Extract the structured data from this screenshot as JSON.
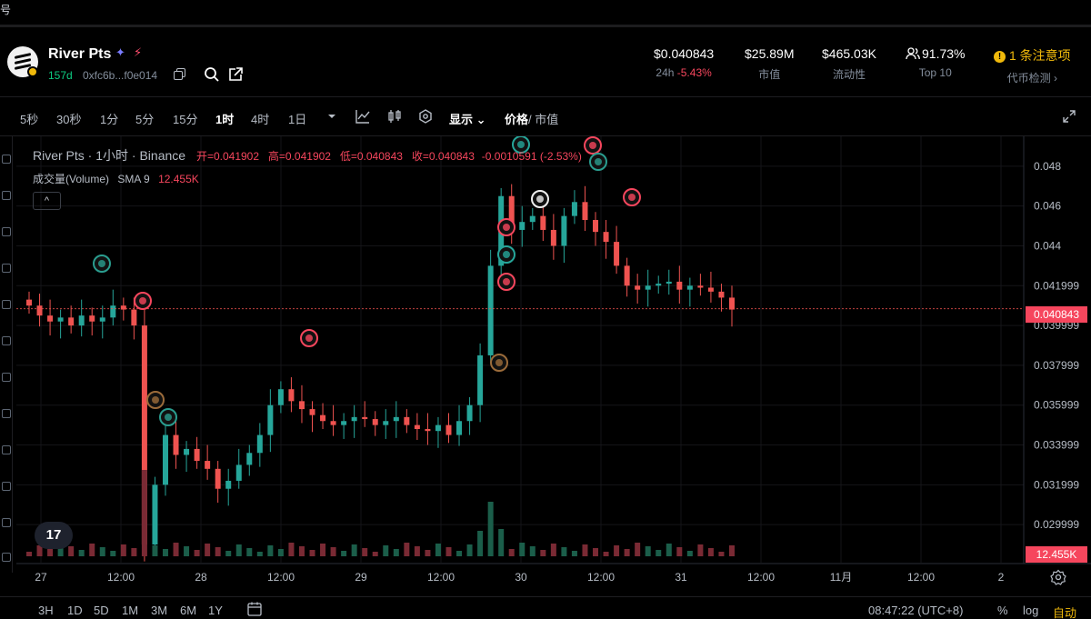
{
  "topstrip": {
    "text": "号"
  },
  "header": {
    "token_name": "River Pts",
    "age": "157d",
    "address": "0xfc6b...f0e014",
    "price": "$0.040843",
    "change_label": "24h",
    "change_value": "-5.43%",
    "market_cap": "$25.89M",
    "market_cap_label": "市值",
    "liquidity": "$465.03K",
    "liquidity_label": "流动性",
    "top10": "91.73%",
    "top10_label": "Top 10",
    "alert": "1 条注意项",
    "alert_label": "代币检测",
    "alert_label_arrow": "›"
  },
  "toolbar": {
    "timeframes": [
      "5秒",
      "30秒",
      "1分",
      "5分",
      "15分",
      "1时",
      "4时",
      "1日"
    ],
    "active_timeframe": "1时",
    "display_label": "显示",
    "price_label": "价格",
    "mcap_label": "/ 市值"
  },
  "legend": {
    "title": "River Pts · 1小时 · Binance",
    "open": "开=0.041902",
    "high": "高=0.041902",
    "low": "低=0.040843",
    "close": "收=0.040843",
    "change": "-0.0010591 (-2.53%)",
    "volume_label": "成交量(Volume)",
    "sma_label": "SMA 9",
    "volume_value": "12.455K",
    "collapse": "^"
  },
  "colors": {
    "up": "#26a69a",
    "down": "#ef5350",
    "background": "#000000",
    "grid": "#151518",
    "accent": "#f0b90b"
  },
  "chart_data": {
    "type": "candlestick",
    "title": "River Pts · 1小时 · Binance",
    "y_ticks": [
      "0.048",
      "0.046",
      "0.044",
      "0.041999",
      "0.039999",
      "0.037999",
      "0.035999",
      "0.033999",
      "0.031999",
      "0.029999"
    ],
    "x_ticks": [
      "27",
      "12:00",
      "28",
      "12:00",
      "29",
      "12:00",
      "30",
      "12:00",
      "31",
      "12:00",
      "11月",
      "12:00",
      "2"
    ],
    "ylim": [
      0.0285,
      0.0495
    ],
    "last_price": "0.040843",
    "last_volume": "12.455K",
    "close_series_approx": [
      0.041,
      0.0405,
      0.0402,
      0.0404,
      0.04,
      0.0405,
      0.0402,
      0.0404,
      0.041,
      0.0408,
      0.04,
      0.029,
      0.032,
      0.0345,
      0.0335,
      0.0338,
      0.0332,
      0.0328,
      0.0318,
      0.0322,
      0.033,
      0.0336,
      0.0345,
      0.036,
      0.0368,
      0.0362,
      0.0358,
      0.0355,
      0.0352,
      0.035,
      0.0352,
      0.0354,
      0.0353,
      0.035,
      0.0352,
      0.0354,
      0.035,
      0.0348,
      0.0347,
      0.035,
      0.0345,
      0.0352,
      0.036,
      0.0385,
      0.043,
      0.0465,
      0.0448,
      0.0452,
      0.0455,
      0.0448,
      0.044,
      0.0455,
      0.0462,
      0.0453,
      0.0447,
      0.0442,
      0.043,
      0.042,
      0.0418,
      0.042,
      0.0421,
      0.0422,
      0.0418,
      0.042,
      0.0419,
      0.0417,
      0.0414,
      0.0408
    ]
  },
  "bottombar": {
    "ranges": [
      "3H",
      "1D",
      "5D",
      "1M",
      "3M",
      "6M",
      "1Y"
    ],
    "clock": "08:47:22 (UTC+8)",
    "percent": "%",
    "log": "log",
    "auto": "自动"
  }
}
